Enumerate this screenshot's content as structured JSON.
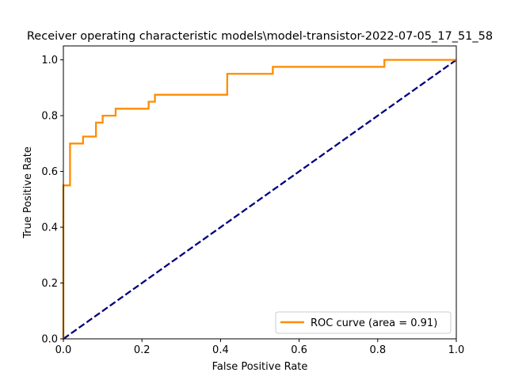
{
  "chart_data": {
    "type": "line",
    "title": "Receiver operating characteristic models\\model-transistor-2022-07-05_17_51_58",
    "xlabel": "False Positive Rate",
    "ylabel": "True Positive Rate",
    "xlim": [
      0.0,
      1.0
    ],
    "ylim": [
      0.0,
      1.05
    ],
    "x_ticks": [
      "0.0",
      "0.2",
      "0.4",
      "0.6",
      "0.8",
      "1.0"
    ],
    "y_ticks": [
      "0.0",
      "0.2",
      "0.4",
      "0.6",
      "0.8",
      "1.0"
    ],
    "grid": false,
    "legend_position": "lower-right",
    "series": [
      {
        "name": "ROC curve (area = 0.91)",
        "color": "#ff8c00",
        "style": "solid",
        "x": [
          0.0,
          0.0,
          0.017,
          0.017,
          0.05,
          0.05,
          0.083,
          0.083,
          0.1,
          0.1,
          0.133,
          0.133,
          0.217,
          0.217,
          0.233,
          0.233,
          0.417,
          0.417,
          0.533,
          0.533,
          0.817,
          0.817,
          1.0
        ],
        "y": [
          0.0,
          0.55,
          0.55,
          0.7,
          0.7,
          0.725,
          0.725,
          0.775,
          0.775,
          0.8,
          0.8,
          0.825,
          0.825,
          0.85,
          0.85,
          0.875,
          0.875,
          0.95,
          0.95,
          0.975,
          0.975,
          1.0,
          1.0
        ]
      },
      {
        "name": "",
        "color": "#000080",
        "style": "dashed",
        "x": [
          0.0,
          1.0
        ],
        "y": [
          0.0,
          1.0
        ]
      }
    ]
  }
}
